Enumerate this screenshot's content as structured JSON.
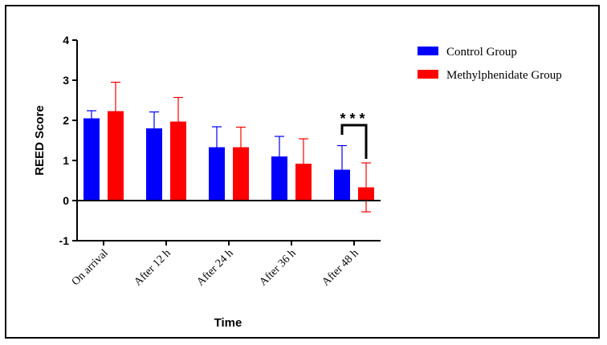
{
  "chart_data": {
    "type": "bar",
    "title": "",
    "xlabel": "Time",
    "ylabel": "REED Score",
    "ylim": [
      -1,
      4
    ],
    "yticks": [
      -1,
      0,
      1,
      2,
      3,
      4
    ],
    "categories": [
      "On arrival",
      "After 12 h",
      "After 24 h",
      "After 36 h",
      "After 48 h"
    ],
    "series": [
      {
        "name": "Control Group",
        "color": "#0000ff",
        "values": [
          2.05,
          1.8,
          1.33,
          1.1,
          0.77
        ],
        "errors": [
          0.19,
          0.41,
          0.51,
          0.5,
          0.6
        ]
      },
      {
        "name": "Methylphenidate Group",
        "color": "#ff0000",
        "values": [
          2.23,
          1.97,
          1.33,
          0.92,
          0.33
        ],
        "errors": [
          0.72,
          0.6,
          0.5,
          0.62,
          0.61
        ]
      }
    ],
    "annotations": [
      {
        "text": "* * *",
        "category": "After 48 h",
        "type": "significance-bracket"
      }
    ],
    "legend": "right"
  }
}
